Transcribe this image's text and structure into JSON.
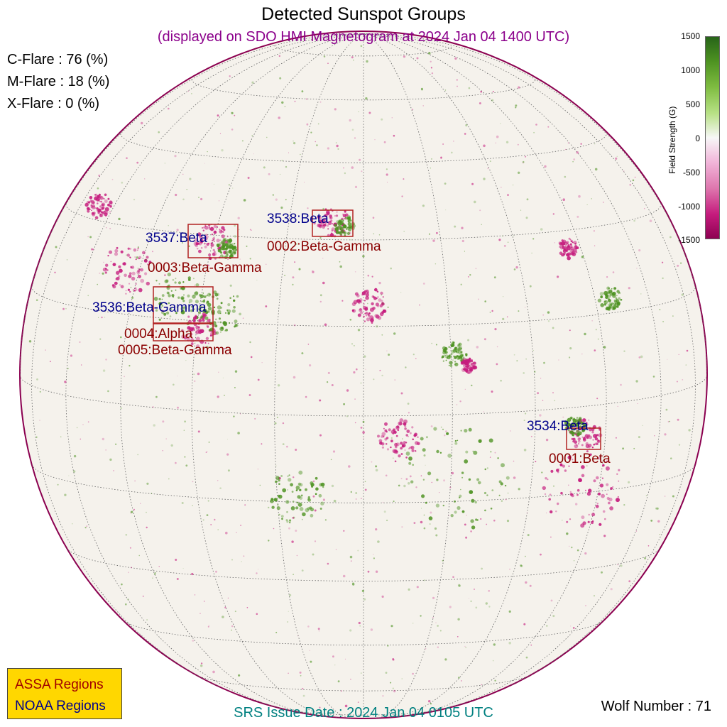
{
  "title": "Detected Sunspot Groups",
  "subtitle": "(displayed on SDO HMI Magnetogram at 2024 Jan 04 1400 UTC)",
  "flare_probabilities": [
    {
      "label": "C-Flare : 76 (%)"
    },
    {
      "label": "M-Flare : 18 (%)"
    },
    {
      "label": "X-Flare :  0 (%)"
    }
  ],
  "colorbar": {
    "label": "Field Strength (G)",
    "ticks": [
      "1500",
      "1000",
      "500",
      "0",
      "-500",
      "-1000",
      "-1500"
    ],
    "colors": [
      "#276419",
      "#7fbc41",
      "#f7f7f7",
      "#de77ae",
      "#8e0152"
    ]
  },
  "regions": [
    {
      "noaa": "3538:Beta",
      "assa": "0002:Beta-Gamma"
    },
    {
      "noaa": "3537:Beta",
      "assa": "0003:Beta-Gamma"
    },
    {
      "noaa": "3536:Beta-Gamma",
      "assa": "0004:Alpha"
    },
    {
      "assa": "0005:Beta-Gamma"
    },
    {
      "noaa": "3534:Beta",
      "assa": "0001:Beta"
    }
  ],
  "legend": {
    "assa": "ASSA Regions",
    "noaa": "NOAA Regions"
  },
  "srs_issue": "SRS Issue Date : 2024 Jan 04 0105 UTC",
  "wolf_number": "Wolf Number : 71",
  "colors": {
    "noaa": "#00008b",
    "assa": "#8b0000",
    "box": "#b22222",
    "positive": "#4d9221",
    "negative": "#c51b7d"
  }
}
